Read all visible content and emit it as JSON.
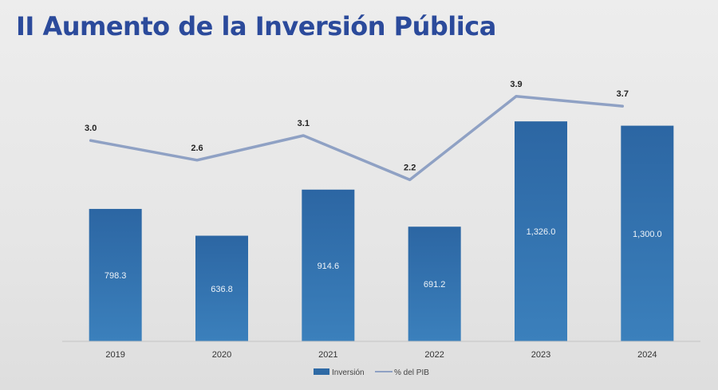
{
  "title": "II Aumento de la Inversión Pública",
  "chart_data": {
    "type": "bar",
    "categories": [
      "2019",
      "2020",
      "2021",
      "2022",
      "2023",
      "2024"
    ],
    "series": [
      {
        "name": "Inversión",
        "type": "bar",
        "values": [
          798.3,
          636.8,
          914.6,
          691.2,
          1326.0,
          1300.0
        ],
        "labels": [
          "798.3",
          "636.8",
          "914.6",
          "691.2",
          "1,326.0",
          "1,300.0"
        ],
        "color": "#2f6aa5"
      },
      {
        "name": "% del PIB",
        "type": "line",
        "values": [
          3.0,
          2.6,
          3.1,
          2.2,
          3.9,
          3.7
        ],
        "labels": [
          "3.0",
          "2.6",
          "3.1",
          "2.2",
          "3.9",
          "3.7"
        ],
        "color": "#8fa1c4"
      }
    ],
    "y_bar_range": [
      0,
      1500
    ],
    "y_line_range": [
      0.5,
      4.4
    ],
    "grid": false,
    "legend_position": "bottom"
  }
}
